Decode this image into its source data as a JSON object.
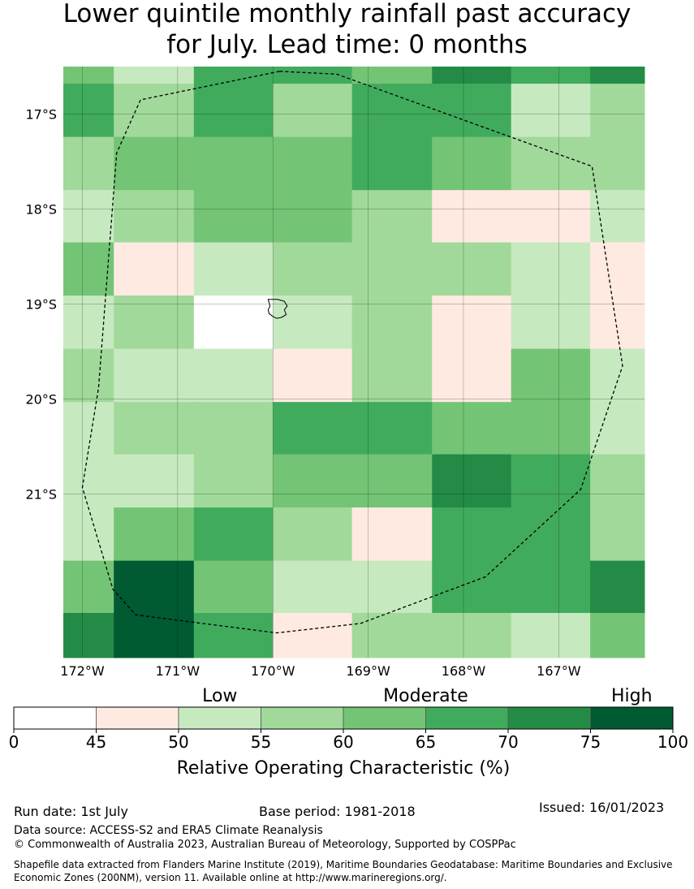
{
  "title_line1": "Lower quintile monthly rainfall past accuracy",
  "title_line2": "for July. Lead time: 0 months",
  "chart_data": {
    "type": "heatmap",
    "title": "Lower quintile monthly rainfall past accuracy for July. Lead time: 0 months",
    "value_label": "Relative Operating Characteristic (%)",
    "x_tick_labels": [
      "172°W",
      "171°W",
      "170°W",
      "169°W",
      "168°W",
      "167°W"
    ],
    "y_tick_labels": [
      "17°S",
      "18°S",
      "19°S",
      "20°S",
      "21°S"
    ],
    "x_ticks": [
      -172,
      -171,
      -170,
      -169,
      -168,
      -167
    ],
    "y_ticks": [
      -17,
      -18,
      -19,
      -20,
      -21
    ],
    "xlim": [
      -172.2,
      -166.1
    ],
    "ylim": [
      -22.72,
      -16.5
    ],
    "grid": true,
    "col_edges": [
      -172.2,
      -171.67,
      -170.83,
      -170.0,
      -169.17,
      -168.33,
      -167.5,
      -166.67,
      -166.1
    ],
    "row_edges": [
      -16.5,
      -16.68,
      -17.24,
      -17.8,
      -18.35,
      -18.91,
      -19.47,
      -20.03,
      -20.58,
      -21.14,
      -21.7,
      -22.25,
      -22.72
    ],
    "row_class_values": [
      [
        62.5,
        52.5,
        67.5,
        67.5,
        62.5,
        72.5,
        67.5,
        72.5
      ],
      [
        67.5,
        57.5,
        67.5,
        57.5,
        67.5,
        67.5,
        52.5,
        57.5
      ],
      [
        57.5,
        62.5,
        62.5,
        62.5,
        67.5,
        62.5,
        57.5,
        57.5
      ],
      [
        52.5,
        57.5,
        62.5,
        62.5,
        57.5,
        47.5,
        47.5,
        52.5
      ],
      [
        62.5,
        47.5,
        52.5,
        57.5,
        57.5,
        57.5,
        52.5,
        47.5
      ],
      [
        52.5,
        57.5,
        22.5,
        52.5,
        57.5,
        47.5,
        52.5,
        47.5
      ],
      [
        57.5,
        52.5,
        52.5,
        47.5,
        57.5,
        47.5,
        62.5,
        52.5
      ],
      [
        52.5,
        57.5,
        57.5,
        67.5,
        67.5,
        62.5,
        62.5,
        52.5
      ],
      [
        52.5,
        52.5,
        57.5,
        62.5,
        62.5,
        72.5,
        67.5,
        57.5
      ],
      [
        52.5,
        62.5,
        67.5,
        57.5,
        47.5,
        67.5,
        67.5,
        57.5
      ],
      [
        62.5,
        87.5,
        62.5,
        52.5,
        52.5,
        67.5,
        67.5,
        72.5
      ],
      [
        72.5,
        87.5,
        67.5,
        47.5,
        57.5,
        57.5,
        52.5,
        62.5
      ]
    ],
    "colorbar": {
      "bounds": [
        0,
        45,
        50,
        55,
        60,
        65,
        70,
        75,
        100
      ],
      "tick_labels": [
        "0",
        "45",
        "50",
        "55",
        "60",
        "65",
        "70",
        "75",
        "100"
      ],
      "colors": [
        "#ffffff",
        "#feeae1",
        "#c7e9c0",
        "#a1d99b",
        "#74c476",
        "#41ab5d",
        "#238b45",
        "#005a32"
      ],
      "category_labels": [
        "Low",
        "Moderate",
        "High"
      ],
      "label": "Relative Operating Characteristic (%)"
    },
    "boundary": {
      "lon": [
        -169.93,
        -169.33,
        -166.65,
        -166.33,
        -166.77,
        -167.77,
        -169.08,
        -169.96,
        -171.44,
        -171.68,
        -172.0,
        -171.83,
        -171.64,
        -171.39,
        -169.93
      ],
      "lat": [
        -16.55,
        -16.58,
        -17.55,
        -19.65,
        -20.95,
        -21.87,
        -22.36,
        -22.46,
        -22.27,
        -22.0,
        -20.93,
        -19.88,
        -17.41,
        -16.85,
        -16.55
      ]
    },
    "island": {
      "lon": [
        -170.05,
        -169.95,
        -169.88,
        -169.85,
        -169.88,
        -169.86,
        -169.91,
        -169.96,
        -170.0,
        -170.04,
        -170.05,
        -170.03,
        -170.05
      ],
      "lat": [
        -18.95,
        -18.95,
        -18.97,
        -19.02,
        -19.06,
        -19.11,
        -19.14,
        -19.15,
        -19.13,
        -19.1,
        -19.06,
        -19.02,
        -18.95
      ]
    }
  },
  "footer": {
    "run_date": "Run date: 1st July",
    "base_period": "Base period: 1981-2018",
    "issued": "Issued: 16/01/2023",
    "data_source": "Data source: ACCESS-S2 and ERA5 Climate Reanalysis",
    "copyright": "© Commonwealth of Australia 2023, Australian Bureau of Meteorology, Supported by COSPPac",
    "shapefile": "Shapefile data extracted from Flanders Marine Institute (2019), Maritime Boundaries Geodatabase: Maritime Boundaries and Exclusive Economic Zones (200NM), version 11. Available online at http://www.marineregions.org/."
  }
}
